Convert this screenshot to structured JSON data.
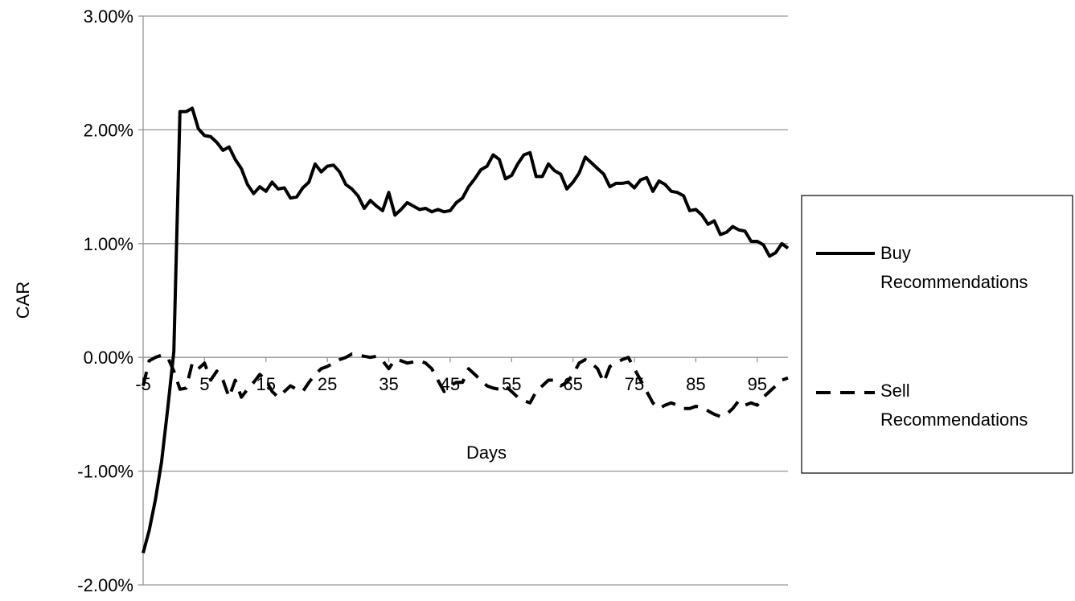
{
  "chart_data": {
    "type": "line",
    "title": "",
    "xlabel": "Days",
    "ylabel": "CAR",
    "xlim": [
      -5,
      100
    ],
    "ylim": [
      -2,
      3
    ],
    "x_ticks": [
      -5,
      5,
      15,
      25,
      35,
      45,
      55,
      65,
      75,
      85,
      95
    ],
    "x_tick_labels": [
      "-5",
      "5",
      "15",
      "25",
      "35",
      "45",
      "55",
      "65",
      "75",
      "85",
      "95"
    ],
    "y_ticks": [
      -2,
      -1,
      0,
      1,
      2,
      3
    ],
    "y_tick_labels": [
      "-2.00%",
      "-1.00%",
      "0.00%",
      "1.00%",
      "2.00%",
      "3.00%"
    ],
    "grid": true,
    "legend_position": "right",
    "series": [
      {
        "name": "Buy Recommendations",
        "style": "solid",
        "color": "#000000",
        "x": [
          -5,
          -4,
          -3,
          -2,
          -1,
          0,
          1,
          2,
          3,
          4,
          5,
          6,
          7,
          8,
          9,
          10,
          11,
          12,
          13,
          14,
          15,
          16,
          17,
          18,
          19,
          20,
          21,
          22,
          23,
          24,
          25,
          26,
          27,
          28,
          29,
          30,
          31,
          32,
          33,
          34,
          35,
          36,
          37,
          38,
          39,
          40,
          41,
          42,
          43,
          44,
          45,
          46,
          47,
          48,
          49,
          50,
          51,
          52,
          53,
          54,
          55,
          56,
          57,
          58,
          59,
          60,
          61,
          62,
          63,
          64,
          65,
          66,
          67,
          68,
          69,
          70,
          71,
          72,
          73,
          74,
          75,
          76,
          77,
          78,
          79,
          80,
          81,
          82,
          83,
          84,
          85,
          86,
          87,
          88,
          89,
          90,
          91,
          92,
          93,
          94,
          95,
          96,
          97,
          98,
          99,
          100
        ],
        "values": [
          -1.72,
          -1.52,
          -1.25,
          -0.92,
          -0.45,
          0.05,
          2.16,
          2.16,
          2.19,
          2.01,
          1.95,
          1.94,
          1.89,
          1.82,
          1.85,
          1.74,
          1.66,
          1.52,
          1.44,
          1.5,
          1.46,
          1.54,
          1.48,
          1.49,
          1.4,
          1.41,
          1.49,
          1.54,
          1.7,
          1.63,
          1.68,
          1.69,
          1.63,
          1.52,
          1.48,
          1.42,
          1.31,
          1.38,
          1.33,
          1.29,
          1.45,
          1.25,
          1.3,
          1.36,
          1.33,
          1.3,
          1.31,
          1.28,
          1.3,
          1.28,
          1.29,
          1.36,
          1.4,
          1.5,
          1.57,
          1.65,
          1.68,
          1.78,
          1.74,
          1.57,
          1.6,
          1.7,
          1.78,
          1.8,
          1.59,
          1.59,
          1.7,
          1.64,
          1.61,
          1.48,
          1.54,
          1.62,
          1.76,
          1.71,
          1.66,
          1.61,
          1.5,
          1.53,
          1.53,
          1.54,
          1.49,
          1.56,
          1.58,
          1.46,
          1.55,
          1.52,
          1.46,
          1.45,
          1.42,
          1.29,
          1.3,
          1.25,
          1.17,
          1.2,
          1.08,
          1.1,
          1.15,
          1.12,
          1.11,
          1.02,
          1.02,
          0.99,
          0.89,
          0.92,
          1.0,
          0.96
        ]
      },
      {
        "name": "Sell Recommendations",
        "style": "dashed",
        "color": "#000000",
        "x": [
          -5,
          -4,
          -3,
          -2,
          -1,
          0,
          1,
          2,
          3,
          4,
          5,
          6,
          7,
          8,
          9,
          10,
          11,
          12,
          13,
          14,
          15,
          16,
          17,
          18,
          19,
          20,
          21,
          22,
          23,
          24,
          25,
          26,
          27,
          28,
          29,
          30,
          31,
          32,
          33,
          34,
          35,
          36,
          37,
          38,
          39,
          40,
          41,
          42,
          43,
          44,
          45,
          46,
          47,
          48,
          49,
          50,
          51,
          52,
          53,
          54,
          55,
          56,
          57,
          58,
          59,
          60,
          61,
          62,
          63,
          64,
          65,
          66,
          67,
          68,
          69,
          70,
          71,
          72,
          73,
          74,
          75,
          76,
          77,
          78,
          79,
          80,
          81,
          82,
          83,
          84,
          85,
          86,
          87,
          88,
          89,
          90,
          91,
          92,
          93,
          94,
          95,
          96,
          97,
          98,
          99,
          100
        ],
        "values": [
          -0.25,
          -0.03,
          0.0,
          0.02,
          0.0,
          -0.12,
          -0.28,
          -0.27,
          -0.05,
          -0.1,
          -0.05,
          -0.2,
          -0.12,
          -0.2,
          -0.35,
          -0.2,
          -0.35,
          -0.28,
          -0.22,
          -0.15,
          -0.2,
          -0.3,
          -0.35,
          -0.3,
          -0.25,
          -0.28,
          -0.3,
          -0.22,
          -0.15,
          -0.1,
          -0.08,
          -0.05,
          -0.02,
          0.0,
          0.03,
          0.02,
          0.01,
          0.0,
          0.01,
          -0.03,
          -0.1,
          -0.02,
          -0.03,
          -0.05,
          -0.04,
          -0.03,
          -0.05,
          -0.1,
          -0.2,
          -0.3,
          -0.25,
          -0.22,
          -0.22,
          -0.1,
          -0.15,
          -0.2,
          -0.25,
          -0.27,
          -0.28,
          -0.25,
          -0.3,
          -0.35,
          -0.38,
          -0.4,
          -0.3,
          -0.25,
          -0.2,
          -0.2,
          -0.25,
          -0.22,
          -0.15,
          -0.05,
          -0.02,
          -0.05,
          -0.1,
          -0.22,
          -0.08,
          -0.05,
          -0.02,
          0.0,
          -0.1,
          -0.2,
          -0.3,
          -0.4,
          -0.45,
          -0.42,
          -0.4,
          -0.42,
          -0.45,
          -0.45,
          -0.43,
          -0.44,
          -0.47,
          -0.5,
          -0.52,
          -0.5,
          -0.45,
          -0.38,
          -0.42,
          -0.4,
          -0.42,
          -0.35,
          -0.3,
          -0.25,
          -0.2,
          -0.18
        ]
      }
    ]
  },
  "legend": {
    "items": [
      {
        "line1": "Buy",
        "line2": "Recommendations"
      },
      {
        "line1": "Sell",
        "line2": "Recommendations"
      }
    ]
  }
}
